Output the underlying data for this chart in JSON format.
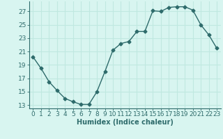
{
  "x": [
    0,
    1,
    2,
    3,
    4,
    5,
    6,
    7,
    8,
    9,
    10,
    11,
    12,
    13,
    14,
    15,
    16,
    17,
    18,
    19,
    20,
    21,
    22,
    23
  ],
  "y": [
    20.2,
    18.5,
    16.5,
    15.2,
    14.0,
    13.5,
    13.1,
    13.1,
    15.0,
    18.0,
    21.2,
    22.2,
    22.5,
    24.0,
    24.0,
    27.1,
    27.0,
    27.6,
    27.7,
    27.7,
    27.2,
    25.0,
    23.5,
    21.5
  ],
  "xlabel": "Humidex (Indice chaleur)",
  "xticks": [
    0,
    1,
    2,
    3,
    4,
    5,
    6,
    7,
    8,
    9,
    10,
    11,
    12,
    13,
    14,
    15,
    16,
    17,
    18,
    19,
    20,
    21,
    22,
    23
  ],
  "yticks": [
    13,
    15,
    17,
    19,
    21,
    23,
    25,
    27
  ],
  "ylim": [
    12.5,
    28.5
  ],
  "xlim": [
    -0.5,
    23.5
  ],
  "line_color": "#2e6b6b",
  "marker": "D",
  "marker_size": 2.5,
  "bg_color": "#d8f5f0",
  "grid_color": "#c0e8e0",
  "tick_color": "#2e6b6b",
  "xlabel_color": "#2e6b6b",
  "xlabel_fontsize": 7,
  "tick_fontsize": 6.5
}
